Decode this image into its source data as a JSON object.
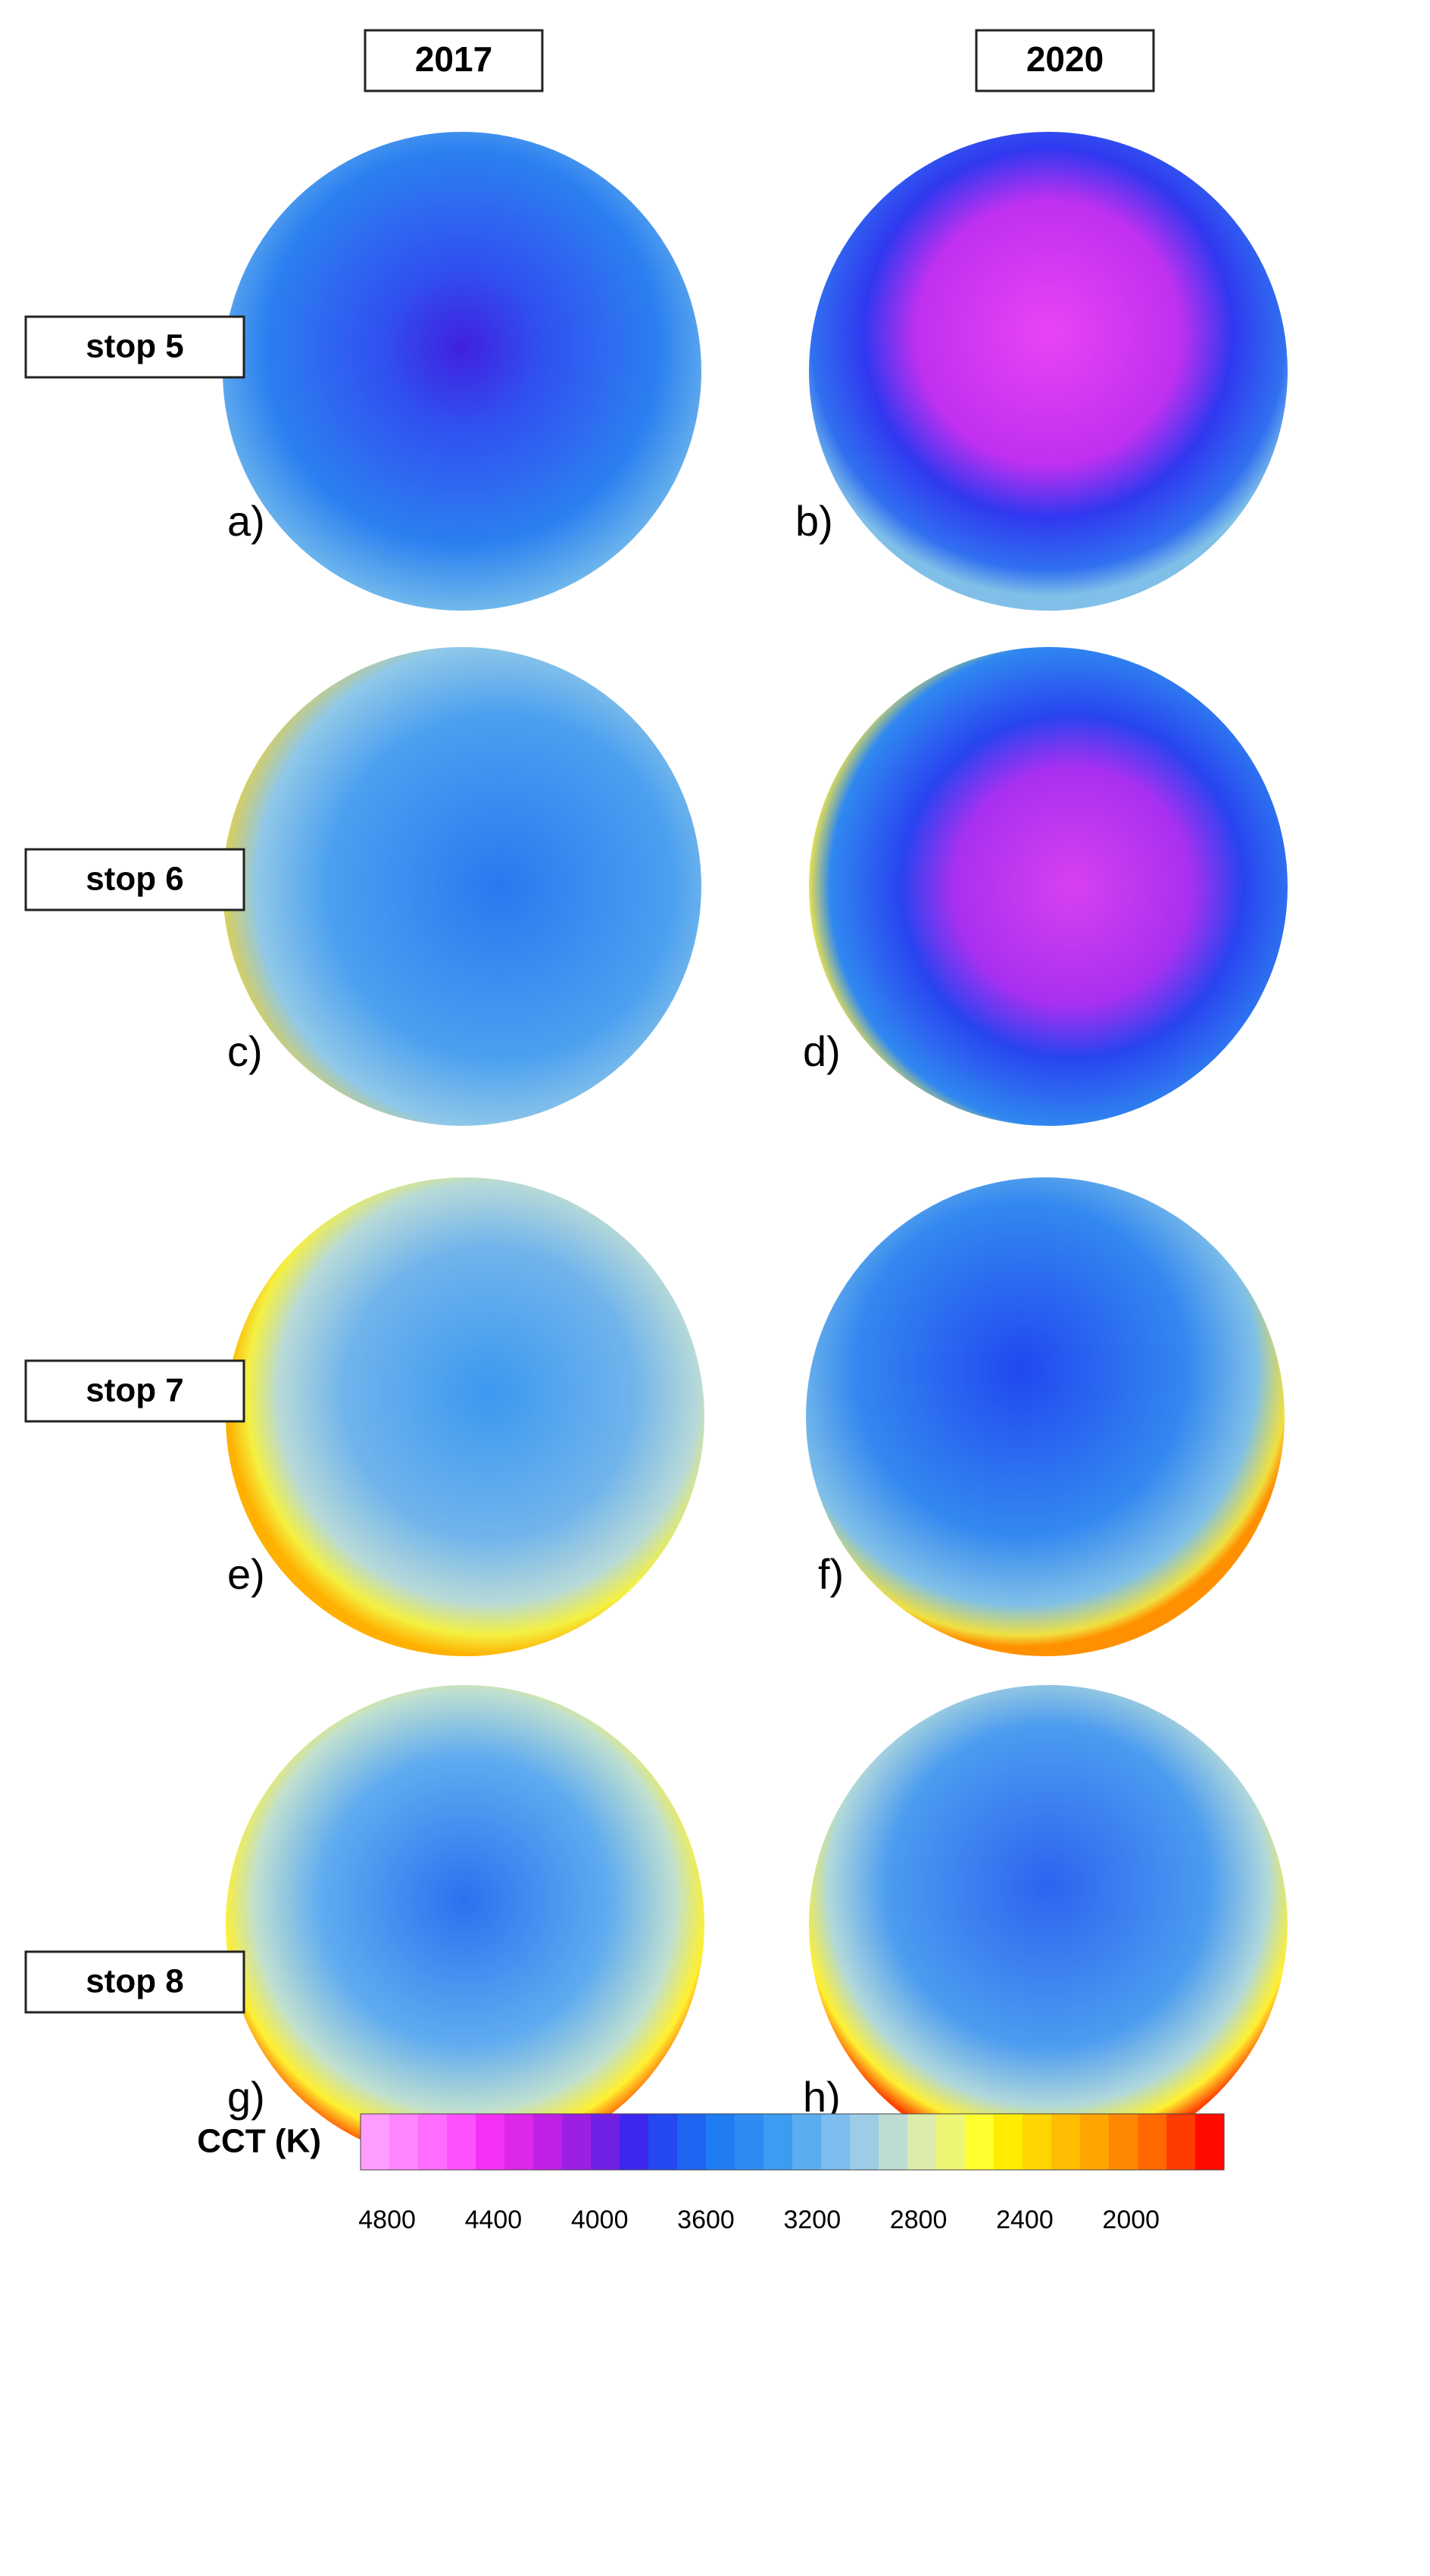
{
  "columns": [
    "2017",
    "2020"
  ],
  "rows": [
    "stop 5",
    "stop 6",
    "stop 7",
    "stop 8"
  ],
  "panels": [
    "a)",
    "b)",
    "c)",
    "d)",
    "e)",
    "f)",
    "g)",
    "h)"
  ],
  "colorbar": {
    "label": "CCT (K)",
    "clim": [
      4900,
      1650
    ],
    "ticks": [
      4800,
      4400,
      4000,
      3600,
      3200,
      2800,
      2400,
      2000
    ],
    "colors": [
      "#ff9cff",
      "#ff85ff",
      "#ff6cff",
      "#ff50ff",
      "#f530f5",
      "#dd28e8",
      "#c020e6",
      "#9c20e4",
      "#7020e4",
      "#3c28ee",
      "#2448f2",
      "#2064f2",
      "#207cf2",
      "#2c8cf2",
      "#3c9cf2",
      "#5cacf0",
      "#7cbcee",
      "#9ccce6",
      "#bcdcd4",
      "#dcecac",
      "#eef474",
      "#ffff30",
      "#ffec00",
      "#ffd400",
      "#ffbc00",
      "#ffa400",
      "#ff8800",
      "#ff6800",
      "#ff3c00",
      "#ff0a00"
    ]
  }
}
